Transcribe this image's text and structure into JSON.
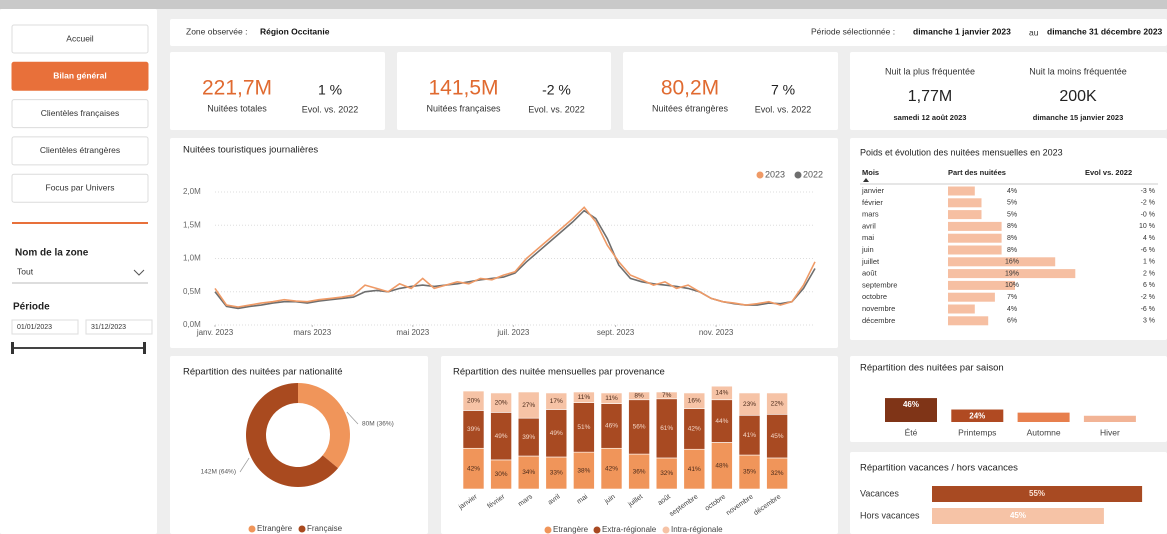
{
  "nav": [
    "Accueil",
    "Bilan général",
    "Clientèles françaises",
    "Clientèles étrangères",
    "Focus par Univers"
  ],
  "nav_active": 1,
  "filters": {
    "zone_label": "Nom de la zone",
    "zone_value": "Tout",
    "period_label": "Période",
    "period_start": "01/01/2023",
    "period_end": "31/12/2023"
  },
  "header": {
    "zone_label": "Zone observée :",
    "zone": "Région Occitanie",
    "period_label": "Période sélectionnée :",
    "start": "dimanche 1 janvier 2023",
    "between": "au",
    "end": "dimanche 31 décembre 2023"
  },
  "kpis": [
    {
      "value": "221,7M",
      "label": "Nuitées totales",
      "evol": "1 %",
      "evol_label": "Evol. vs. 2022"
    },
    {
      "value": "141,5M",
      "label": "Nuitées françaises",
      "evol": "-2 %",
      "evol_label": "Evol. vs. 2022"
    },
    {
      "value": "80,2M",
      "label": "Nuitées étrangères",
      "evol": "7 %",
      "evol_label": "Evol. vs. 2022"
    }
  ],
  "peaks": [
    {
      "title": "Nuit la plus fréquentée",
      "value": "1,77M",
      "date": "samedi 12 août 2023"
    },
    {
      "title": "Nuit la moins fréquentée",
      "value": "200K",
      "date": "dimanche 15 janvier 2023"
    }
  ],
  "monthly_table": {
    "title": "Poids et évolution des nuitées mensuelles en 2023",
    "headers": [
      "Mois",
      "Part des nuitées",
      "Evol vs. 2022"
    ],
    "months": [
      "janvier",
      "février",
      "mars",
      "avril",
      "mai",
      "juin",
      "juillet",
      "août",
      "septembre",
      "octobre",
      "novembre",
      "décembre"
    ],
    "share": [
      4,
      5,
      5,
      8,
      8,
      8,
      16,
      19,
      10,
      7,
      4,
      6
    ],
    "share_labels": [
      "4%",
      "5%",
      "5%",
      "8%",
      "8%",
      "8%",
      "16%",
      "19%",
      "10%",
      "7%",
      "4%",
      "6%"
    ],
    "evolution": [
      -3,
      -2,
      0,
      10,
      4,
      -6,
      1,
      2,
      6,
      -2,
      -6,
      3
    ],
    "evolution_labels": [
      "-3 %",
      "-2 %",
      "-0 %",
      "10 %",
      "4 %",
      "-6 %",
      "1 %",
      "2 %",
      "6 %",
      "-2 %",
      "-6 %",
      "3 %"
    ],
    "color": "#f6bfa2"
  },
  "chart_data": [
    {
      "type": "line",
      "title": "Nuitées touristiques journalières",
      "x": [
        1,
        8,
        15,
        22,
        29,
        36,
        43,
        50,
        57,
        64,
        71,
        78,
        85,
        92,
        99,
        106,
        113,
        120,
        127,
        134,
        141,
        148,
        155,
        162,
        169,
        176,
        183,
        190,
        197,
        204,
        211,
        218,
        225,
        232,
        239,
        246,
        253,
        260,
        267,
        274,
        281,
        288,
        295,
        302,
        309,
        316,
        323,
        330,
        337,
        344,
        351,
        358,
        365
      ],
      "xlim": [
        1,
        365
      ],
      "xticks": [
        {
          "value": 1,
          "label": "janv. 2023"
        },
        {
          "value": 60,
          "label": "mars 2023"
        },
        {
          "value": 121,
          "label": "mai 2023"
        },
        {
          "value": 182,
          "label": "juil. 2023"
        },
        {
          "value": 244,
          "label": "sept. 2023"
        },
        {
          "value": 305,
          "label": "nov. 2023"
        }
      ],
      "ylim": [
        0,
        2
      ],
      "yticks": [
        {
          "value": 0,
          "label": "0,0M"
        },
        {
          "value": 0.5,
          "label": "0,5M"
        },
        {
          "value": 1,
          "label": "1,0M"
        },
        {
          "value": 1.5,
          "label": "1,5M"
        },
        {
          "value": 2,
          "label": "2,0M"
        }
      ],
      "grid": true,
      "legend": "top-right",
      "series": [
        {
          "name": "2023",
          "color": "#ef9a66",
          "values": [
            0.55,
            0.3,
            0.27,
            0.3,
            0.33,
            0.35,
            0.38,
            0.36,
            0.35,
            0.38,
            0.4,
            0.42,
            0.45,
            0.6,
            0.55,
            0.5,
            0.62,
            0.55,
            0.7,
            0.55,
            0.6,
            0.65,
            0.62,
            0.7,
            0.68,
            0.75,
            0.8,
            1.0,
            1.15,
            1.3,
            1.45,
            1.6,
            1.77,
            1.55,
            1.2,
            0.95,
            0.75,
            0.68,
            0.6,
            0.65,
            0.55,
            0.6,
            0.5,
            0.4,
            0.35,
            0.33,
            0.3,
            0.32,
            0.35,
            0.3,
            0.35,
            0.6,
            0.95
          ]
        },
        {
          "name": "2022",
          "color": "#6e6e6e",
          "values": [
            0.5,
            0.28,
            0.25,
            0.28,
            0.3,
            0.33,
            0.35,
            0.35,
            0.33,
            0.36,
            0.38,
            0.4,
            0.42,
            0.5,
            0.52,
            0.5,
            0.55,
            0.58,
            0.6,
            0.58,
            0.6,
            0.62,
            0.65,
            0.68,
            0.7,
            0.72,
            0.78,
            0.95,
            1.1,
            1.25,
            1.4,
            1.55,
            1.72,
            1.6,
            1.3,
            0.9,
            0.7,
            0.65,
            0.62,
            0.6,
            0.58,
            0.55,
            0.5,
            0.4,
            0.35,
            0.32,
            0.3,
            0.3,
            0.33,
            0.32,
            0.35,
            0.55,
            0.85
          ]
        }
      ]
    },
    {
      "type": "pie",
      "title": "Répartition des nuitées par nationalité",
      "donut": true,
      "categories": [
        "Etrangère",
        "Française"
      ],
      "values": [
        36,
        64
      ],
      "value_labels": [
        "80M (36%)",
        "142M (64%)"
      ],
      "colors": [
        "#f0955a",
        "#a94a1f"
      ],
      "legend": "bottom"
    },
    {
      "type": "stacked_bar",
      "title": "Répartition des nuitée mensuelles par provenance",
      "categories": [
        "janvier",
        "février",
        "mars",
        "avril",
        "mai",
        "juin",
        "juillet",
        "août",
        "septembre",
        "octobre",
        "novembre",
        "décembre"
      ],
      "legend": "bottom",
      "series": [
        {
          "name": "Etrangère",
          "color": "#f0955a",
          "values": [
            42,
            30,
            34,
            33,
            38,
            42,
            36,
            32,
            41,
            48,
            35,
            32
          ],
          "value_labels": [
            "42%",
            "30%",
            "34%",
            "33%",
            "38%",
            "42%",
            "36%",
            "32%",
            "41%",
            "48%",
            "35%",
            "32%"
          ]
        },
        {
          "name": "Extra-régionale",
          "color": "#a84a22",
          "values": [
            39,
            49,
            39,
            49,
            51,
            46,
            56,
            61,
            42,
            44,
            41,
            45
          ],
          "value_labels": [
            "39%",
            "49%",
            "39%",
            "49%",
            "51%",
            "46%",
            "56%",
            "61%",
            "42%",
            "44%",
            "41%",
            "45%"
          ]
        },
        {
          "name": "Intra-régionale",
          "color": "#f6c3a6",
          "values": [
            20,
            20,
            27,
            17,
            11,
            11,
            8,
            7,
            16,
            14,
            23,
            22
          ],
          "value_labels": [
            "20%",
            "20%",
            "27%",
            "17%",
            "11%",
            "11%",
            "8%",
            "7%",
            "16%",
            "14%",
            "23%",
            "22%"
          ]
        }
      ]
    },
    {
      "type": "bar",
      "title": "Répartition des nuitées par saison",
      "categories": [
        "Été",
        "Printemps",
        "Automne",
        "Hiver"
      ],
      "values": [
        46,
        24,
        18,
        12
      ],
      "value_labels": [
        "46%",
        "24%",
        null,
        null
      ],
      "colors": [
        "#7f3417",
        "#b04a22",
        "#e77f4d",
        "#f2b496"
      ]
    },
    {
      "type": "barh",
      "title": "Répartition vacances / hors vacances",
      "categories": [
        "Vacances",
        "Hors vacances"
      ],
      "values": [
        55,
        45
      ],
      "value_labels": [
        "55%",
        "45%"
      ],
      "colors": [
        "#a84a22",
        "#f6c3a6"
      ]
    }
  ]
}
